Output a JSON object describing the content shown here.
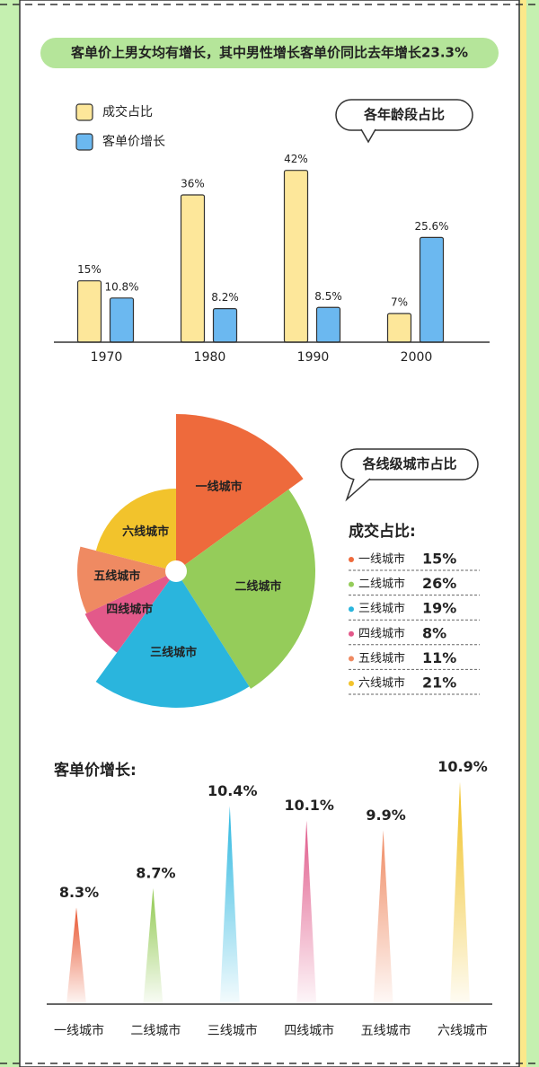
{
  "banner": "客单价上男女均有增长，其中男性增长客单价同比去年增长23.3%",
  "chart_data": [
    {
      "type": "bar",
      "title": "各年龄段占比",
      "categories": [
        "1970",
        "1980",
        "1990",
        "2000"
      ],
      "series": [
        {
          "name": "成交占比",
          "color": "#fde79a",
          "values": [
            15,
            36,
            42,
            7
          ],
          "value_labels": [
            "15%",
            "36%",
            "42%",
            "7%"
          ]
        },
        {
          "name": "客单价增长",
          "color": "#6bb8f0",
          "values": [
            10.8,
            8.2,
            8.5,
            25.6
          ],
          "value_labels": [
            "10.8%",
            "8.2%",
            "8.5%",
            "25.6%"
          ]
        }
      ],
      "ylim": [
        0,
        45
      ]
    },
    {
      "type": "rose",
      "title": "各线级城市占比",
      "legend_title": "成交占比:",
      "categories": [
        "一线城市",
        "二线城市",
        "三线城市",
        "四线城市",
        "五线城市",
        "六线城市"
      ],
      "values": [
        15,
        26,
        19,
        8,
        11,
        21
      ],
      "value_labels": [
        "15%",
        "26%",
        "19%",
        "8%",
        "11%",
        "21%"
      ],
      "colors": [
        "#ee6a3c",
        "#95cc5a",
        "#2ab5dd",
        "#e3598a",
        "#ef8a62",
        "#f2c32c"
      ]
    },
    {
      "type": "spike",
      "title": "客单价增长:",
      "categories": [
        "一线城市",
        "二线城市",
        "三线城市",
        "四线城市",
        "五线城市",
        "六线城市"
      ],
      "values": [
        8.3,
        8.7,
        10.4,
        10.1,
        9.9,
        10.9
      ],
      "value_labels": [
        "8.3%",
        "8.7%",
        "10.4%",
        "10.1%",
        "9.9%",
        "10.9%"
      ],
      "colors": [
        "#e8542e",
        "#8fc84e",
        "#2bb7e0",
        "#e05a8a",
        "#ef8a62",
        "#f0c020"
      ],
      "ylim": [
        6.3,
        11.2
      ]
    }
  ]
}
